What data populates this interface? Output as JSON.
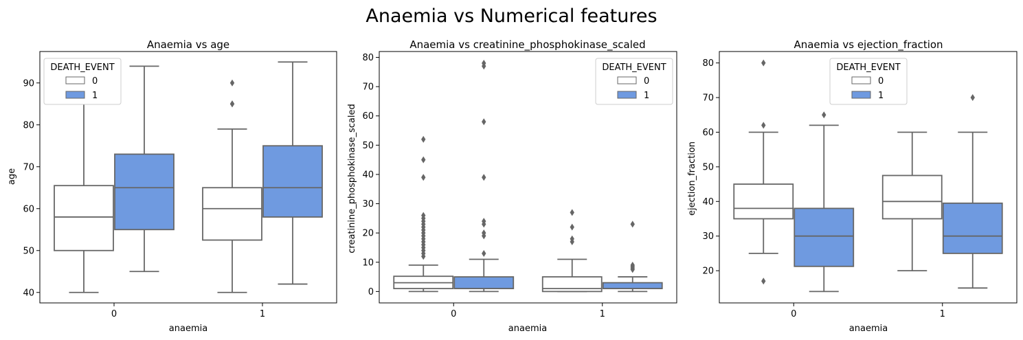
{
  "figure": {
    "title": "Anaemia vs Numerical features"
  },
  "colors": {
    "box_0": "#ffffff",
    "box_1": "#6f9ae0",
    "line": "#666666",
    "axes": "#000000"
  },
  "chart_data": [
    {
      "type": "box",
      "title": "Anaemia vs age",
      "xlabel": "anaemia",
      "ylabel": "age",
      "categories": [
        "0",
        "1"
      ],
      "ylim": [
        37.5,
        97.5
      ],
      "yticks": [
        40,
        50,
        60,
        70,
        80,
        90
      ],
      "legend": {
        "title": "DEATH_EVENT",
        "entries": [
          "0",
          "1"
        ],
        "placement": "upper left"
      },
      "series": [
        {
          "name": "0",
          "boxes": [
            {
              "whislo": 40,
              "q1": 50,
              "med": 58,
              "q3": 65.5,
              "whishi": 85,
              "fliers": []
            },
            {
              "whislo": 40,
              "q1": 52.5,
              "med": 60,
              "q3": 65,
              "whishi": 79,
              "fliers": [
                85,
                85,
                90
              ]
            }
          ]
        },
        {
          "name": "1",
          "boxes": [
            {
              "whislo": 45,
              "q1": 55,
              "med": 65,
              "q3": 73,
              "whishi": 94,
              "fliers": []
            },
            {
              "whislo": 42,
              "q1": 58,
              "med": 65,
              "q3": 75,
              "whishi": 95,
              "fliers": []
            }
          ]
        }
      ]
    },
    {
      "type": "box",
      "title": "Anaemia vs creatinine_phosphokinase_scaled",
      "xlabel": "anaemia",
      "ylabel": "creatinine_phosphokinase_scaled",
      "categories": [
        "0",
        "1"
      ],
      "ylim": [
        -3.9,
        82
      ],
      "yticks": [
        0,
        10,
        20,
        30,
        40,
        50,
        60,
        70,
        80
      ],
      "legend": {
        "title": "DEATH_EVENT",
        "entries": [
          "0",
          "1"
        ],
        "placement": "upper right"
      },
      "series": [
        {
          "name": "0",
          "boxes": [
            {
              "whislo": 0,
              "q1": 1,
              "med": 3,
              "q3": 5.2,
              "whishi": 9,
              "fliers": [
                12,
                13,
                14,
                15,
                16,
                17,
                18,
                19,
                20,
                21,
                22,
                23,
                24,
                25,
                26,
                39,
                45,
                52
              ]
            },
            {
              "whislo": 0,
              "q1": 0,
              "med": 1,
              "q3": 5,
              "whishi": 11,
              "fliers": [
                17,
                18,
                22,
                27
              ]
            }
          ]
        },
        {
          "name": "1",
          "boxes": [
            {
              "whislo": 0,
              "q1": 1,
              "med": 1,
              "q3": 5,
              "whishi": 11,
              "fliers": [
                13,
                19,
                20,
                23,
                24,
                39,
                58,
                77,
                78
              ]
            },
            {
              "whislo": 0,
              "q1": 1,
              "med": 1,
              "q3": 3,
              "whishi": 5,
              "fliers": [
                7.5,
                8,
                8.5,
                9,
                23
              ]
            }
          ]
        }
      ]
    },
    {
      "type": "box",
      "title": "Anaemia vs ejection_fraction",
      "xlabel": "anaemia",
      "ylabel": "ejection_fraction",
      "categories": [
        "0",
        "1"
      ],
      "ylim": [
        10.7,
        83.3
      ],
      "yticks": [
        20,
        30,
        40,
        50,
        60,
        70,
        80
      ],
      "legend": {
        "title": "DEATH_EVENT",
        "entries": [
          "0",
          "1"
        ],
        "placement": "upper center"
      },
      "series": [
        {
          "name": "0",
          "boxes": [
            {
              "whislo": 25,
              "q1": 35,
              "med": 38,
              "q3": 45,
              "whishi": 60,
              "fliers": [
                17,
                62,
                80
              ]
            },
            {
              "whislo": 20,
              "q1": 35,
              "med": 40,
              "q3": 47.5,
              "whishi": 60,
              "fliers": []
            }
          ]
        },
        {
          "name": "1",
          "boxes": [
            {
              "whislo": 14,
              "q1": 21.25,
              "med": 30,
              "q3": 38,
              "whishi": 62,
              "fliers": [
                65
              ]
            },
            {
              "whislo": 15,
              "q1": 25,
              "med": 30,
              "q3": 39.5,
              "whishi": 60,
              "fliers": [
                70
              ]
            }
          ]
        }
      ]
    }
  ]
}
